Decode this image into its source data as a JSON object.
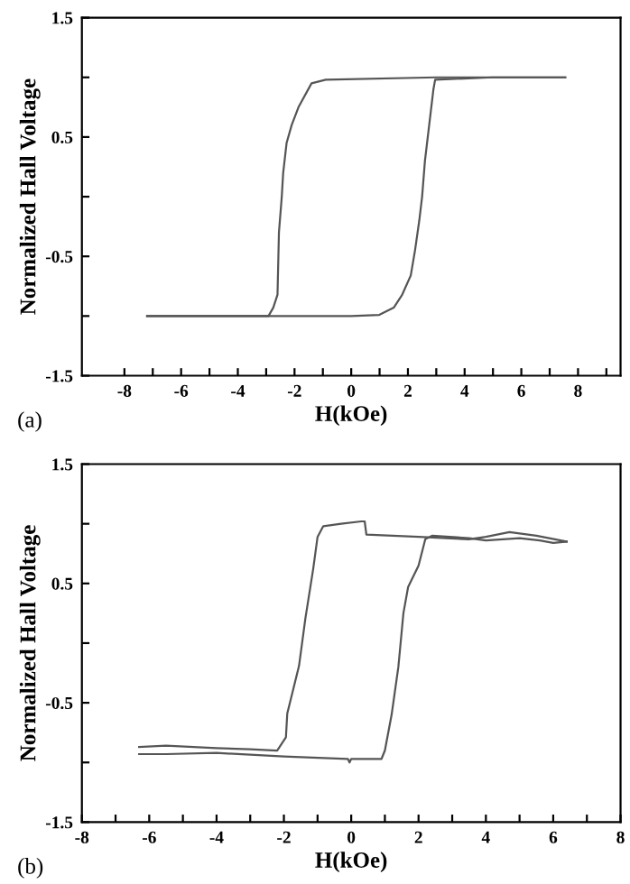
{
  "chart_data": [
    {
      "type": "line",
      "xlabel": "H(kOe)",
      "ylabel": "Normalized Hall Voltage",
      "annotations": [
        "(a)"
      ],
      "xlim": [
        -9.5,
        9.5
      ],
      "ylim": [
        -1.5,
        1.5
      ],
      "xticks": [
        -8,
        {
          "value": -7,
          "label": null
        },
        -6,
        {
          "value": -5,
          "label": null
        },
        -4,
        {
          "value": -3,
          "label": null
        },
        -2,
        {
          "value": -1,
          "label": null
        },
        0,
        {
          "value": 1,
          "label": null
        },
        2,
        {
          "value": 3,
          "label": null
        },
        4,
        {
          "value": 5,
          "label": null
        },
        6,
        {
          "value": 7,
          "label": null
        },
        8,
        {
          "value": 9,
          "label": null
        }
      ],
      "yticks": [
        -1.5,
        {
          "value": -1,
          "label": null
        },
        -0.5,
        {
          "value": 0,
          "label": null
        },
        0.5,
        {
          "value": 1,
          "label": null
        },
        1.5
      ],
      "series": [
        {
          "color": "#555555",
          "x": [
            -7.2,
            -4.0,
            -2.92,
            -2.75,
            -2.6,
            -2.55,
            -2.45,
            -2.4,
            -2.28,
            -2.1,
            -1.86,
            -1.4,
            -0.9,
            3.0,
            7.55
          ],
          "values": [
            -1.0,
            -1.0,
            -1.0,
            -0.93,
            -0.82,
            -0.3,
            0.0,
            0.2,
            0.45,
            0.6,
            0.75,
            0.95,
            0.98,
            1.0,
            1.0
          ]
        },
        {
          "color": "#555555",
          "x": [
            -7.2,
            -4.0,
            0.0,
            0.99,
            1.5,
            1.8,
            2.1,
            2.25,
            2.4,
            2.5,
            2.6,
            2.75,
            2.9,
            2.96,
            5.0,
            7.55
          ],
          "values": [
            -1.0,
            -1.0,
            -1.0,
            -0.99,
            -0.93,
            -0.82,
            -0.66,
            -0.45,
            -0.2,
            0.0,
            0.3,
            0.6,
            0.9,
            0.98,
            1.0,
            1.0
          ]
        }
      ]
    },
    {
      "type": "line",
      "xlabel": "H(kOe)",
      "ylabel": "Normalized Hall Voltage",
      "annotations": [
        "(b)"
      ],
      "xlim": [
        -8,
        8
      ],
      "ylim": [
        -1.5,
        1.5
      ],
      "xticks": [
        -8,
        {
          "value": -7,
          "label": null
        },
        -6,
        {
          "value": -5,
          "label": null
        },
        -4,
        {
          "value": -3,
          "label": null
        },
        -2,
        {
          "value": -1,
          "label": null
        },
        0,
        {
          "value": 1,
          "label": null
        },
        2,
        {
          "value": 3,
          "label": null
        },
        4,
        {
          "value": 5,
          "label": null
        },
        6,
        {
          "value": 7,
          "label": null
        },
        8
      ],
      "yticks": [
        -1.5,
        {
          "value": -1,
          "label": null
        },
        -0.5,
        {
          "value": 0,
          "label": null
        },
        0.5,
        {
          "value": 1,
          "label": null
        },
        1.5
      ],
      "series": [
        {
          "color": "#555555",
          "x": [
            -6.3,
            -5.5,
            -4.0,
            -3.0,
            -2.2,
            -1.94,
            -1.9,
            -1.55,
            -1.36,
            -1.13,
            -1.0,
            -0.83,
            -0.3,
            0.3,
            0.4,
            0.45,
            2.0,
            3.5,
            4.0,
            4.7,
            5.5,
            6.4
          ],
          "values": [
            -0.87,
            -0.86,
            -0.88,
            -0.89,
            -0.9,
            -0.79,
            -0.59,
            -0.19,
            0.21,
            0.62,
            0.89,
            0.98,
            1.0,
            1.02,
            1.02,
            0.91,
            0.89,
            0.87,
            0.89,
            0.93,
            0.9,
            0.85
          ]
        },
        {
          "color": "#555555",
          "x": [
            -6.3,
            -5.5,
            -4.0,
            -2.0,
            -0.1,
            -0.05,
            0.0,
            0.9,
            1.0,
            1.2,
            1.4,
            1.55,
            1.69,
            2.0,
            2.2,
            2.4,
            3.5,
            4.0,
            5.0,
            5.6,
            6.0,
            6.4
          ],
          "values": [
            -0.93,
            -0.93,
            -0.92,
            -0.95,
            -0.97,
            -1.0,
            -0.97,
            -0.97,
            -0.9,
            -0.6,
            -0.2,
            0.25,
            0.47,
            0.65,
            0.87,
            0.9,
            0.88,
            0.86,
            0.88,
            0.86,
            0.84,
            0.85
          ]
        }
      ]
    }
  ]
}
